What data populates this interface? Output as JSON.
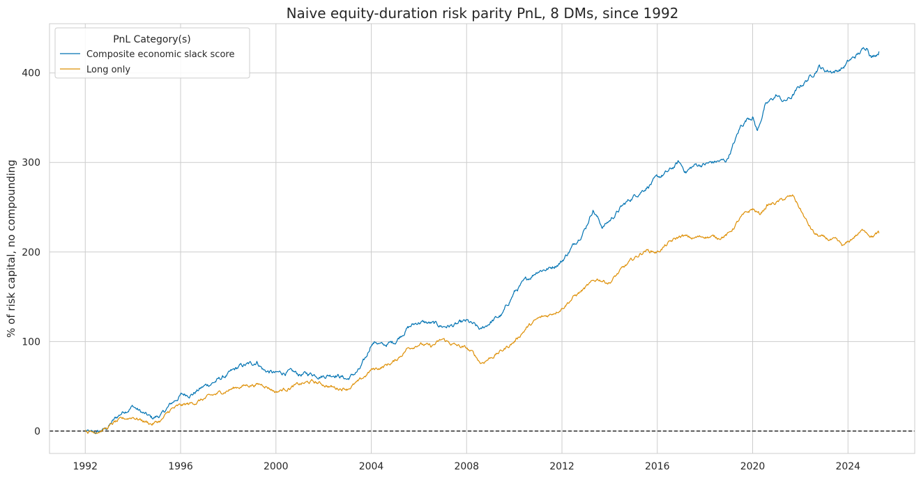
{
  "chart_data": {
    "type": "line",
    "title": "Naive equity-duration risk parity PnL, 8 DMs, since 1992",
    "xlabel": "",
    "ylabel": "% of risk capital, no compounding",
    "xlim": [
      1990.5,
      2026.8
    ],
    "ylim": [
      -25,
      455
    ],
    "xticks": [
      1992,
      1996,
      2000,
      2004,
      2008,
      2012,
      2016,
      2020,
      2024
    ],
    "xtick_labels": [
      "1992",
      "1996",
      "2000",
      "2004",
      "2008",
      "2012",
      "2016",
      "2020",
      "2024"
    ],
    "yticks": [
      0,
      100,
      200,
      300,
      400
    ],
    "ytick_labels": [
      "0",
      "100",
      "200",
      "300",
      "400"
    ],
    "grid": true,
    "reference_line": {
      "y": 0,
      "style": "dashed",
      "color": "#000000"
    },
    "legend": {
      "title": "PnL Category(s)",
      "position": "top-left"
    },
    "series": [
      {
        "name": "Composite economic slack score",
        "color": "#0072b2",
        "noise": 1.6,
        "points": [
          [
            1992.0,
            0
          ],
          [
            1992.3,
            -3
          ],
          [
            1992.6,
            -1
          ],
          [
            1992.9,
            3
          ],
          [
            1993.2,
            12
          ],
          [
            1993.6,
            22
          ],
          [
            1994.0,
            28
          ],
          [
            1994.4,
            20
          ],
          [
            1994.8,
            14
          ],
          [
            1995.2,
            18
          ],
          [
            1995.6,
            30
          ],
          [
            1996.0,
            40
          ],
          [
            1996.5,
            42
          ],
          [
            1997.0,
            50
          ],
          [
            1997.5,
            56
          ],
          [
            1998.0,
            63
          ],
          [
            1998.5,
            72
          ],
          [
            1999.0,
            75
          ],
          [
            1999.2,
            78
          ],
          [
            1999.5,
            68
          ],
          [
            2000.0,
            64
          ],
          [
            2000.5,
            66
          ],
          [
            2001.0,
            63
          ],
          [
            2001.5,
            64
          ],
          [
            2002.0,
            62
          ],
          [
            2002.5,
            64
          ],
          [
            2003.0,
            58
          ],
          [
            2003.5,
            68
          ],
          [
            2003.8,
            82
          ],
          [
            2004.0,
            98
          ],
          [
            2004.2,
            100
          ],
          [
            2004.5,
            95
          ],
          [
            2005.0,
            100
          ],
          [
            2005.5,
            115
          ],
          [
            2006.0,
            122
          ],
          [
            2006.5,
            120
          ],
          [
            2007.0,
            117
          ],
          [
            2007.5,
            118
          ],
          [
            2008.0,
            122
          ],
          [
            2008.3,
            118
          ],
          [
            2008.6,
            112
          ],
          [
            2009.0,
            122
          ],
          [
            2009.5,
            130
          ],
          [
            2010.0,
            155
          ],
          [
            2010.5,
            168
          ],
          [
            2011.0,
            180
          ],
          [
            2011.5,
            182
          ],
          [
            2012.0,
            190
          ],
          [
            2012.5,
            208
          ],
          [
            2013.0,
            228
          ],
          [
            2013.3,
            248
          ],
          [
            2013.7,
            228
          ],
          [
            2014.0,
            235
          ],
          [
            2014.5,
            250
          ],
          [
            2015.0,
            262
          ],
          [
            2015.5,
            272
          ],
          [
            2016.0,
            282
          ],
          [
            2016.5,
            290
          ],
          [
            2016.9,
            300
          ],
          [
            2017.2,
            290
          ],
          [
            2017.6,
            297
          ],
          [
            2018.0,
            298
          ],
          [
            2018.5,
            301
          ],
          [
            2018.9,
            302
          ],
          [
            2019.2,
            320
          ],
          [
            2019.5,
            340
          ],
          [
            2019.8,
            350
          ],
          [
            2020.0,
            352
          ],
          [
            2020.2,
            335
          ],
          [
            2020.5,
            362
          ],
          [
            2021.0,
            375
          ],
          [
            2021.3,
            368
          ],
          [
            2021.6,
            372
          ],
          [
            2022.0,
            385
          ],
          [
            2022.5,
            398
          ],
          [
            2022.8,
            408
          ],
          [
            2023.0,
            403
          ],
          [
            2023.5,
            402
          ],
          [
            2023.8,
            406
          ],
          [
            2024.0,
            412
          ],
          [
            2024.4,
            420
          ],
          [
            2024.8,
            430
          ],
          [
            2025.0,
            418
          ],
          [
            2025.3,
            424
          ]
        ]
      },
      {
        "name": "Long only",
        "color": "#de8f05",
        "noise": 1.3,
        "points": [
          [
            1992.0,
            0
          ],
          [
            1992.3,
            -1
          ],
          [
            1992.6,
            1
          ],
          [
            1992.9,
            3
          ],
          [
            1993.2,
            9
          ],
          [
            1993.6,
            13
          ],
          [
            1994.0,
            16
          ],
          [
            1994.4,
            12
          ],
          [
            1994.8,
            8
          ],
          [
            1995.2,
            12
          ],
          [
            1995.6,
            24
          ],
          [
            1996.0,
            28
          ],
          [
            1996.5,
            31
          ],
          [
            1997.0,
            36
          ],
          [
            1997.5,
            41
          ],
          [
            1998.0,
            46
          ],
          [
            1998.5,
            50
          ],
          [
            1999.0,
            52
          ],
          [
            1999.5,
            52
          ],
          [
            2000.0,
            44
          ],
          [
            2000.5,
            48
          ],
          [
            2001.0,
            52
          ],
          [
            2001.5,
            55
          ],
          [
            2002.0,
            52
          ],
          [
            2002.5,
            48
          ],
          [
            2003.0,
            48
          ],
          [
            2003.5,
            55
          ],
          [
            2004.0,
            68
          ],
          [
            2004.5,
            72
          ],
          [
            2005.0,
            78
          ],
          [
            2005.5,
            92
          ],
          [
            2006.0,
            98
          ],
          [
            2006.5,
            94
          ],
          [
            2007.0,
            102
          ],
          [
            2007.5,
            96
          ],
          [
            2008.0,
            92
          ],
          [
            2008.3,
            86
          ],
          [
            2008.6,
            76
          ],
          [
            2009.0,
            82
          ],
          [
            2009.5,
            90
          ],
          [
            2010.0,
            100
          ],
          [
            2010.5,
            115
          ],
          [
            2011.0,
            125
          ],
          [
            2011.5,
            130
          ],
          [
            2012.0,
            138
          ],
          [
            2012.5,
            150
          ],
          [
            2013.0,
            160
          ],
          [
            2013.5,
            170
          ],
          [
            2014.0,
            166
          ],
          [
            2014.5,
            180
          ],
          [
            2015.0,
            192
          ],
          [
            2015.5,
            202
          ],
          [
            2016.0,
            200
          ],
          [
            2016.5,
            210
          ],
          [
            2017.0,
            218
          ],
          [
            2017.5,
            215
          ],
          [
            2018.0,
            218
          ],
          [
            2018.5,
            216
          ],
          [
            2019.0,
            220
          ],
          [
            2019.5,
            238
          ],
          [
            2020.0,
            248
          ],
          [
            2020.3,
            242
          ],
          [
            2020.6,
            252
          ],
          [
            2021.0,
            255
          ],
          [
            2021.4,
            260
          ],
          [
            2021.7,
            262
          ],
          [
            2022.0,
            248
          ],
          [
            2022.3,
            232
          ],
          [
            2022.6,
            220
          ],
          [
            2023.0,
            215
          ],
          [
            2023.5,
            212
          ],
          [
            2023.8,
            206
          ],
          [
            2024.0,
            210
          ],
          [
            2024.3,
            218
          ],
          [
            2024.7,
            225
          ],
          [
            2025.0,
            218
          ],
          [
            2025.3,
            221
          ]
        ]
      }
    ]
  }
}
